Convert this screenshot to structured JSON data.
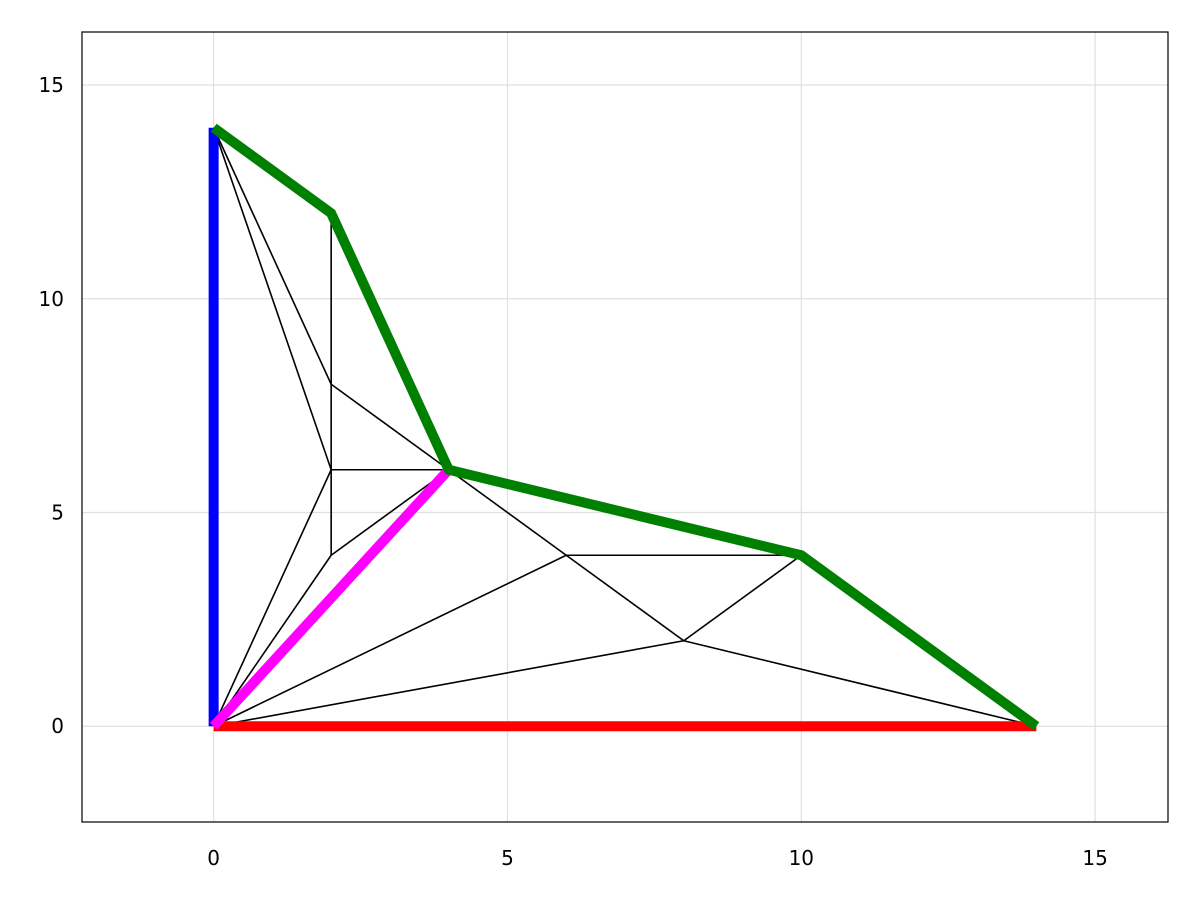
{
  "chart_data": {
    "type": "line",
    "title": "",
    "xlabel": "",
    "ylabel": "",
    "xlim": [
      -2.24,
      16.24
    ],
    "ylim": [
      -2.24,
      16.24
    ],
    "grid": true,
    "x_ticks": [
      0,
      5,
      10,
      15
    ],
    "y_ticks": [
      0,
      5,
      10,
      15
    ],
    "x_tick_labels": [
      "0",
      "5",
      "10",
      "15"
    ],
    "y_tick_labels": [
      "0",
      "5",
      "10",
      "15"
    ],
    "mesh_color": "#000000",
    "mesh_edges": [
      [
        [
          0,
          14
        ],
        [
          2,
          8
        ]
      ],
      [
        [
          0,
          14
        ],
        [
          2,
          6
        ]
      ],
      [
        [
          2,
          12
        ],
        [
          2,
          8
        ]
      ],
      [
        [
          2,
          8
        ],
        [
          2,
          6
        ]
      ],
      [
        [
          2,
          6
        ],
        [
          2,
          4
        ]
      ],
      [
        [
          2,
          8
        ],
        [
          4,
          6
        ]
      ],
      [
        [
          2,
          6
        ],
        [
          4,
          6
        ]
      ],
      [
        [
          2,
          4
        ],
        [
          4,
          6
        ]
      ],
      [
        [
          2,
          6
        ],
        [
          0,
          0
        ]
      ],
      [
        [
          2,
          4
        ],
        [
          0,
          0
        ]
      ],
      [
        [
          4,
          6
        ],
        [
          6,
          4
        ]
      ],
      [
        [
          6,
          4
        ],
        [
          8,
          2
        ]
      ],
      [
        [
          6,
          4
        ],
        [
          10,
          4
        ]
      ],
      [
        [
          8,
          2
        ],
        [
          10,
          4
        ]
      ],
      [
        [
          8,
          2
        ],
        [
          14,
          0
        ]
      ],
      [
        [
          0,
          0
        ],
        [
          6,
          4
        ]
      ],
      [
        [
          0,
          0
        ],
        [
          8,
          2
        ]
      ]
    ],
    "series": [
      {
        "color": "#ff0000",
        "x": [
          0,
          14
        ],
        "y": [
          0,
          0
        ]
      },
      {
        "color": "#0000ff",
        "x": [
          0,
          0
        ],
        "y": [
          0,
          14
        ]
      },
      {
        "color": "#ff00ff",
        "x": [
          0,
          4
        ],
        "y": [
          0,
          6
        ]
      },
      {
        "color": "#008000",
        "x": [
          0,
          2,
          4,
          10,
          14
        ],
        "y": [
          14,
          12,
          6,
          4,
          0
        ]
      }
    ]
  }
}
